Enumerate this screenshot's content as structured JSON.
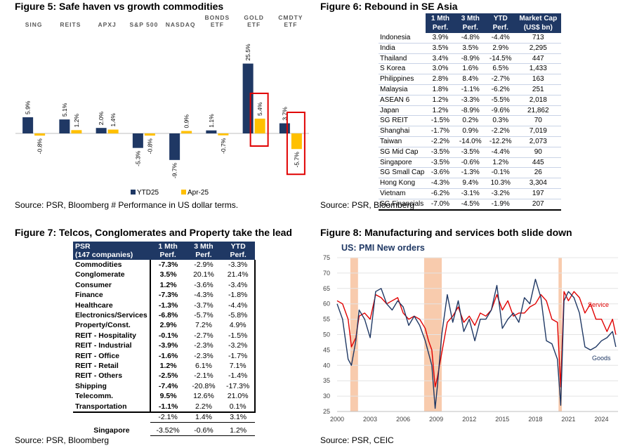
{
  "fig5": {
    "title": "Figure 5: Safe haven vs growth commodities",
    "source": "Source: PSR, Bloomberg # Performance in US dollar terms."
  },
  "fig6": {
    "title": "Figure 6: Rebound in SE Asia",
    "source": "Source: PSR, Bloomberg",
    "headers": [
      "",
      "1 Mth Perf.",
      "3 Mth Perf.",
      "YTD Perf.",
      "Market Cap (US$ bn)"
    ],
    "rows": [
      [
        "Indonesia",
        "3.9%",
        "-4.8%",
        "-4.4%",
        "713"
      ],
      [
        "India",
        "3.5%",
        "3.5%",
        "2.9%",
        "2,295"
      ],
      [
        "Thailand",
        "3.4%",
        "-8.9%",
        "-14.5%",
        "447"
      ],
      [
        "S Korea",
        "3.0%",
        "1.6%",
        "6.5%",
        "1,433"
      ],
      [
        "Philippines",
        "2.8%",
        "8.4%",
        "-2.7%",
        "163"
      ],
      [
        "Malaysia",
        "1.8%",
        "-1.1%",
        "-6.2%",
        "251"
      ],
      [
        "ASEAN 6",
        "1.2%",
        "-3.3%",
        "-5.5%",
        "2,018"
      ],
      [
        "Japan",
        "1.2%",
        "-8.9%",
        "-9.6%",
        "21,862"
      ],
      [
        "SG REIT",
        "-1.5%",
        "0.2%",
        "0.3%",
        "70"
      ],
      [
        "Shanghai",
        "-1.7%",
        "0.9%",
        "-2.2%",
        "7,019"
      ],
      [
        "Taiwan",
        "-2.2%",
        "-14.0%",
        "-12.2%",
        "2,073"
      ],
      [
        "SG Mid Cap",
        "-3.5%",
        "-3.5%",
        "-4.4%",
        "90"
      ],
      [
        "Singapore",
        "-3.5%",
        "-0.6%",
        "1.2%",
        "445"
      ],
      [
        "SG Small Cap",
        "-3.6%",
        "-1.3%",
        "-0.1%",
        "26"
      ],
      [
        "Hong Kong",
        "-4.3%",
        "9.4%",
        "10.3%",
        "3,304"
      ],
      [
        "Vietnam",
        "-6.2%",
        "-3.1%",
        "-3.2%",
        "197"
      ],
      [
        "SG Financials",
        "-7.0%",
        "-4.5%",
        "-1.9%",
        "207"
      ]
    ]
  },
  "fig7": {
    "title": "Figure 7: Telcos, Conglomerates and Property take the lead",
    "source": "Source: PSR, Bloomberg",
    "header_label_1": "PSR",
    "header_label_2": "(147 companies)",
    "headers": [
      "1 Mth Perf.",
      "3 Mth Perf.",
      "YTD Perf."
    ],
    "rows": [
      [
        "Commodities",
        "-7.3%",
        "-2.9%",
        "-3.3%"
      ],
      [
        "Conglomerate",
        "3.5%",
        "20.1%",
        "21.4%"
      ],
      [
        "Consumer",
        "1.2%",
        "-3.6%",
        "-3.4%"
      ],
      [
        "Finance",
        "-7.3%",
        "-4.3%",
        "-1.8%"
      ],
      [
        "Healthcare",
        "-1.3%",
        "-3.7%",
        "-4.4%"
      ],
      [
        "Electronics/Services",
        "-6.8%",
        "-5.7%",
        "-5.8%"
      ],
      [
        "Property/Const.",
        "2.9%",
        "7.2%",
        "4.9%"
      ],
      [
        "REIT - Hospitality",
        "-0.1%",
        "-2.7%",
        "-1.5%"
      ],
      [
        "REIT - Industrial",
        "-3.9%",
        "-2.3%",
        "-3.2%"
      ],
      [
        "REIT - Office",
        "-1.6%",
        "-2.3%",
        "-1.7%"
      ],
      [
        "REIT - Retail",
        "1.2%",
        "6.1%",
        "7.1%"
      ],
      [
        "REIT - Others",
        "-2.5%",
        "-2.1%",
        "-1.4%"
      ],
      [
        "Shipping",
        "-7.4%",
        "-20.8%",
        "-17.3%"
      ],
      [
        "Telecomm.",
        "9.5%",
        "12.6%",
        "21.0%"
      ],
      [
        "Transportation",
        "-1.1%",
        "2.2%",
        "0.1%"
      ]
    ],
    "avg_row": [
      "",
      "-2.1%",
      "1.4%",
      "3.1%"
    ],
    "singapore_row": [
      "Singapore",
      "-3.52%",
      "-0.6%",
      "1.2%"
    ]
  },
  "fig8": {
    "title": "Figure 8: Manufacturing and services both slide down",
    "source": "Source: PSR, CEIC"
  },
  "chart_data": [
    {
      "type": "bar",
      "categories": [
        "SING",
        "REITS",
        "APXJ",
        "S&P 500",
        "NASDAQ",
        "BONDS ETF",
        "GOLD ETF",
        "CMDTY ETF"
      ],
      "series": [
        {
          "name": "YTD25",
          "values": [
            5.9,
            5.1,
            2.0,
            -5.3,
            -9.7,
            1.1,
            25.5,
            3.7
          ],
          "color": "#1f3864"
        },
        {
          "name": "Apr-25",
          "values": [
            -0.8,
            1.2,
            1.4,
            -0.8,
            0.9,
            -0.7,
            5.4,
            -5.7
          ],
          "color": "#ffc000"
        }
      ],
      "value_labels": [
        [
          "5.9%",
          "5.1%",
          "2.0%",
          "-5.3%",
          "-9.7%",
          "1.1%",
          "25.5%",
          "3.7%"
        ],
        [
          "-0.8%",
          "1.2%",
          "1.4%",
          "-0.8%",
          "0.9%",
          "-0.7%",
          "5.4%",
          "-5.7%"
        ]
      ],
      "highlighted_categories": [
        "GOLD ETF",
        "CMDTY ETF"
      ],
      "highlight_color": "#e00000",
      "legend_position": "bottom",
      "ylim": [
        -11,
        28
      ]
    },
    {
      "type": "line",
      "title": "US: PMI New orders",
      "ylim": [
        25,
        75
      ],
      "yticks": [
        25,
        30,
        35,
        40,
        45,
        50,
        55,
        60,
        65,
        70,
        75
      ],
      "xlim": [
        2000,
        2025.5
      ],
      "xticks": [
        "2000",
        "2003",
        "2006",
        "2009",
        "2012",
        "2015",
        "2018",
        "2021",
        "2024"
      ],
      "recessions": [
        [
          2001.2,
          2001.9
        ],
        [
          2007.9,
          2009.5
        ],
        [
          2020.1,
          2020.4
        ]
      ],
      "recession_color": "#f8cbad",
      "grid": true,
      "series": [
        {
          "name": "Service",
          "color": "#e00000",
          "x": [
            2000,
            2000.5,
            2001,
            2001.3,
            2001.7,
            2002,
            2002.5,
            2003,
            2003.5,
            2004,
            2004.5,
            2005,
            2005.5,
            2006,
            2006.5,
            2007,
            2007.5,
            2008,
            2008.3,
            2008.6,
            2008.9,
            2009.1,
            2009.5,
            2010,
            2010.5,
            2011,
            2011.5,
            2012,
            2012.5,
            2013,
            2013.5,
            2014,
            2014.5,
            2015,
            2015.5,
            2016,
            2016.5,
            2017,
            2017.5,
            2018,
            2018.5,
            2019,
            2019.5,
            2020,
            2020.3,
            2020.6,
            2021,
            2021.5,
            2022,
            2022.5,
            2023,
            2023.5,
            2024,
            2024.5,
            2025,
            2025.3
          ],
          "y": [
            61,
            60,
            55,
            46,
            49,
            56,
            57,
            55,
            63,
            62,
            60,
            61,
            62,
            57,
            55,
            56,
            55,
            52,
            48,
            45,
            33,
            36,
            44,
            54,
            56,
            59,
            54,
            56,
            53,
            57,
            56,
            58,
            63,
            58,
            61,
            56,
            57,
            57,
            59,
            60,
            63,
            61,
            55,
            54,
            33,
            64,
            61,
            64,
            62,
            57,
            60,
            55,
            55,
            51,
            55,
            50
          ]
        },
        {
          "name": "Goods",
          "color": "#1f3864",
          "x": [
            2000,
            2000.5,
            2001,
            2001.3,
            2001.7,
            2002,
            2002.5,
            2003,
            2003.5,
            2004,
            2004.5,
            2005,
            2005.5,
            2006,
            2006.5,
            2007,
            2007.5,
            2008,
            2008.3,
            2008.6,
            2008.9,
            2009.1,
            2009.5,
            2010,
            2010.5,
            2011,
            2011.5,
            2012,
            2012.5,
            2013,
            2013.5,
            2014,
            2014.5,
            2015,
            2015.5,
            2016,
            2016.5,
            2017,
            2017.5,
            2018,
            2018.5,
            2019,
            2019.5,
            2020,
            2020.3,
            2020.6,
            2021,
            2021.5,
            2022,
            2022.5,
            2023,
            2023.5,
            2024,
            2024.5,
            2025,
            2025.3
          ],
          "y": [
            60,
            55,
            42,
            40,
            48,
            58,
            55,
            49,
            64,
            65,
            60,
            58,
            61,
            59,
            53,
            56,
            53,
            48,
            44,
            40,
            26,
            33,
            50,
            63,
            54,
            61,
            51,
            55,
            48,
            55,
            55,
            58,
            66,
            52,
            55,
            57,
            54,
            62,
            60,
            68,
            62,
            48,
            47,
            42,
            27,
            61,
            64,
            62,
            57,
            46,
            45,
            46,
            48,
            49,
            51,
            46
          ]
        }
      ],
      "annotations": [
        "Service",
        "Goods"
      ]
    }
  ]
}
